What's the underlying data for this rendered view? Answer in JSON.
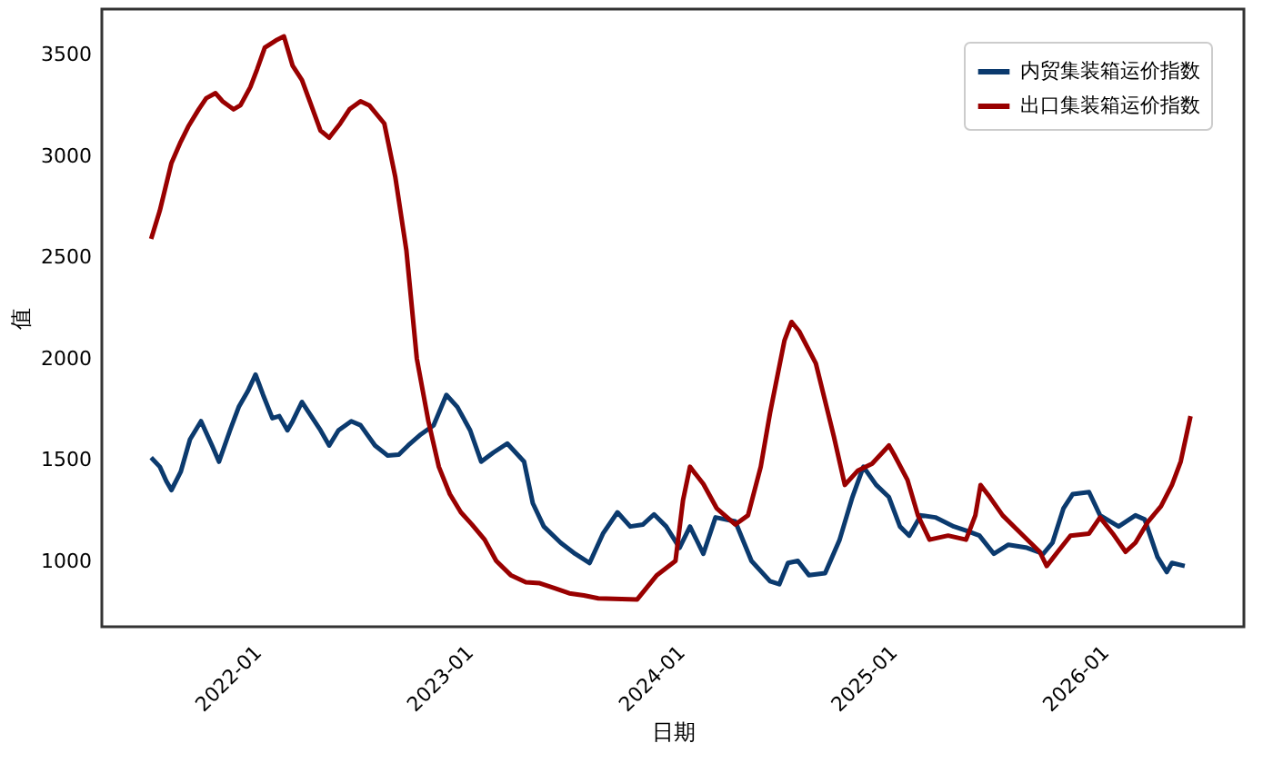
{
  "chart_data": {
    "type": "line",
    "xlabel": "日期",
    "ylabel": "值",
    "xlim": [
      "2021-04-20",
      "2026-09-10"
    ],
    "xticks": [
      {
        "value": "2022-01-01",
        "label": "2022-01"
      },
      {
        "value": "2023-01-01",
        "label": "2023-01"
      },
      {
        "value": "2024-01-01",
        "label": "2024-01"
      },
      {
        "value": "2025-01-01",
        "label": "2025-01"
      },
      {
        "value": "2026-01-01",
        "label": "2026-01"
      }
    ],
    "ylim": [
      675,
      3725
    ],
    "yticks": [
      1000,
      1500,
      2000,
      2500,
      3000,
      3500
    ],
    "grid": false,
    "legend": "top right",
    "marker": "none",
    "line_style": "solid",
    "series": [
      {
        "name": "内贸集装箱运价指数",
        "color": "#0b3a6e",
        "x": [
          "2021-07-14",
          "2021-07-29",
          "2021-08-09",
          "2021-08-18",
          "2021-09-03",
          "2021-09-19",
          "2021-10-08",
          "2021-10-27",
          "2021-11-08",
          "2021-11-27",
          "2021-12-12",
          "2021-12-28",
          "2022-01-10",
          "2022-01-23",
          "2022-02-08",
          "2022-02-20",
          "2022-03-06",
          "2022-03-15",
          "2022-03-31",
          "2022-04-16",
          "2022-05-02",
          "2022-05-17",
          "2022-06-02",
          "2022-06-24",
          "2022-07-10",
          "2022-08-04",
          "2022-08-26",
          "2022-09-14",
          "2022-09-30",
          "2022-10-22",
          "2022-11-13",
          "2022-12-05",
          "2022-12-24",
          "2023-01-15",
          "2023-02-03",
          "2023-02-24",
          "2023-03-20",
          "2023-04-18",
          "2023-05-03",
          "2023-05-22",
          "2023-06-20",
          "2023-07-15",
          "2023-08-09",
          "2023-09-01",
          "2023-09-26",
          "2023-10-18",
          "2023-11-09",
          "2023-11-28",
          "2023-12-19",
          "2024-01-11",
          "2024-01-29",
          "2024-02-21",
          "2024-03-13",
          "2024-04-16",
          "2024-05-14",
          "2024-06-15",
          "2024-07-01",
          "2024-07-16",
          "2024-08-02",
          "2024-08-21",
          "2024-09-18",
          "2024-10-13",
          "2024-11-04",
          "2024-11-23",
          "2024-12-15",
          "2025-01-06",
          "2025-01-25",
          "2025-02-10",
          "2025-03-02",
          "2025-03-27",
          "2025-04-28",
          "2025-05-19",
          "2025-06-11",
          "2025-07-06",
          "2025-07-31",
          "2025-09-01",
          "2025-09-29",
          "2025-10-15",
          "2025-11-03",
          "2025-11-19",
          "2025-12-17",
          "2026-01-05",
          "2026-02-06",
          "2026-03-07",
          "2026-03-23",
          "2026-04-14",
          "2026-04-30",
          "2026-05-09",
          "2026-05-31"
        ],
        "values": [
          1510,
          1465,
          1395,
          1350,
          1440,
          1600,
          1690,
          1570,
          1490,
          1645,
          1760,
          1840,
          1920,
          1820,
          1705,
          1715,
          1645,
          1690,
          1785,
          1715,
          1645,
          1570,
          1645,
          1690,
          1670,
          1570,
          1520,
          1525,
          1570,
          1625,
          1670,
          1820,
          1760,
          1645,
          1490,
          1535,
          1580,
          1490,
          1285,
          1170,
          1090,
          1035,
          990,
          1135,
          1240,
          1170,
          1180,
          1230,
          1170,
          1065,
          1170,
          1035,
          1215,
          1195,
          1000,
          900,
          885,
          990,
          1000,
          930,
          940,
          1105,
          1315,
          1465,
          1375,
          1315,
          1170,
          1125,
          1225,
          1215,
          1170,
          1150,
          1125,
          1035,
          1080,
          1065,
          1035,
          1090,
          1260,
          1330,
          1340,
          1225,
          1170,
          1225,
          1205,
          1020,
          945,
          990,
          975
        ]
      },
      {
        "name": "出口集装箱运价指数",
        "color": "#990000",
        "x": [
          "2021-07-14",
          "2021-07-29",
          "2021-08-18",
          "2021-09-03",
          "2021-09-16",
          "2021-10-04",
          "2021-10-17",
          "2021-11-02",
          "2021-11-14",
          "2021-12-03",
          "2021-12-15",
          "2022-01-01",
          "2022-01-13",
          "2022-01-26",
          "2022-02-14",
          "2022-02-28",
          "2022-03-15",
          "2022-03-31",
          "2022-04-16",
          "2022-05-02",
          "2022-05-17",
          "2022-06-05",
          "2022-06-21",
          "2022-07-10",
          "2022-07-25",
          "2022-08-20",
          "2022-09-08",
          "2022-09-27",
          "2022-10-15",
          "2022-11-04",
          "2022-11-22",
          "2022-12-11",
          "2022-12-30",
          "2023-01-18",
          "2023-02-09",
          "2023-03-01",
          "2023-03-26",
          "2023-04-21",
          "2023-05-15",
          "2023-06-10",
          "2023-07-05",
          "2023-07-30",
          "2023-08-24",
          "2023-10-30",
          "2023-12-03",
          "2024-01-04",
          "2024-01-17",
          "2024-01-29",
          "2024-02-21",
          "2024-03-15",
          "2024-04-16",
          "2024-05-08",
          "2024-05-30",
          "2024-06-15",
          "2024-07-10",
          "2024-07-22",
          "2024-08-04",
          "2024-09-02",
          "2024-10-03",
          "2024-10-22",
          "2024-11-13",
          "2024-12-08",
          "2025-01-06",
          "2025-01-15",
          "2025-02-07",
          "2025-02-25",
          "2025-03-17",
          "2025-04-18",
          "2025-05-19",
          "2025-06-04",
          "2025-06-13",
          "2025-06-29",
          "2025-07-21",
          "2025-08-22",
          "2025-09-23",
          "2025-10-05",
          "2025-10-24",
          "2025-11-15",
          "2025-12-17",
          "2026-01-05",
          "2026-01-27",
          "2026-02-18",
          "2026-03-07",
          "2026-03-29",
          "2026-04-20",
          "2026-05-09",
          "2026-05-24",
          "2026-06-10"
        ],
        "values": [
          2590,
          2730,
          2965,
          3070,
          3145,
          3230,
          3285,
          3310,
          3270,
          3230,
          3250,
          3340,
          3430,
          3535,
          3570,
          3590,
          3445,
          3375,
          3250,
          3125,
          3090,
          3160,
          3230,
          3270,
          3250,
          3160,
          2895,
          2535,
          2000,
          1690,
          1465,
          1330,
          1240,
          1180,
          1105,
          1000,
          930,
          895,
          890,
          865,
          840,
          830,
          815,
          810,
          930,
          1000,
          1300,
          1465,
          1380,
          1260,
          1180,
          1225,
          1465,
          1730,
          2090,
          2180,
          2135,
          1975,
          1615,
          1375,
          1445,
          1480,
          1570,
          1525,
          1400,
          1225,
          1105,
          1125,
          1105,
          1225,
          1375,
          1315,
          1225,
          1135,
          1045,
          975,
          1045,
          1125,
          1135,
          1215,
          1135,
          1045,
          1090,
          1195,
          1270,
          1375,
          1490,
          1715
        ]
      }
    ]
  }
}
